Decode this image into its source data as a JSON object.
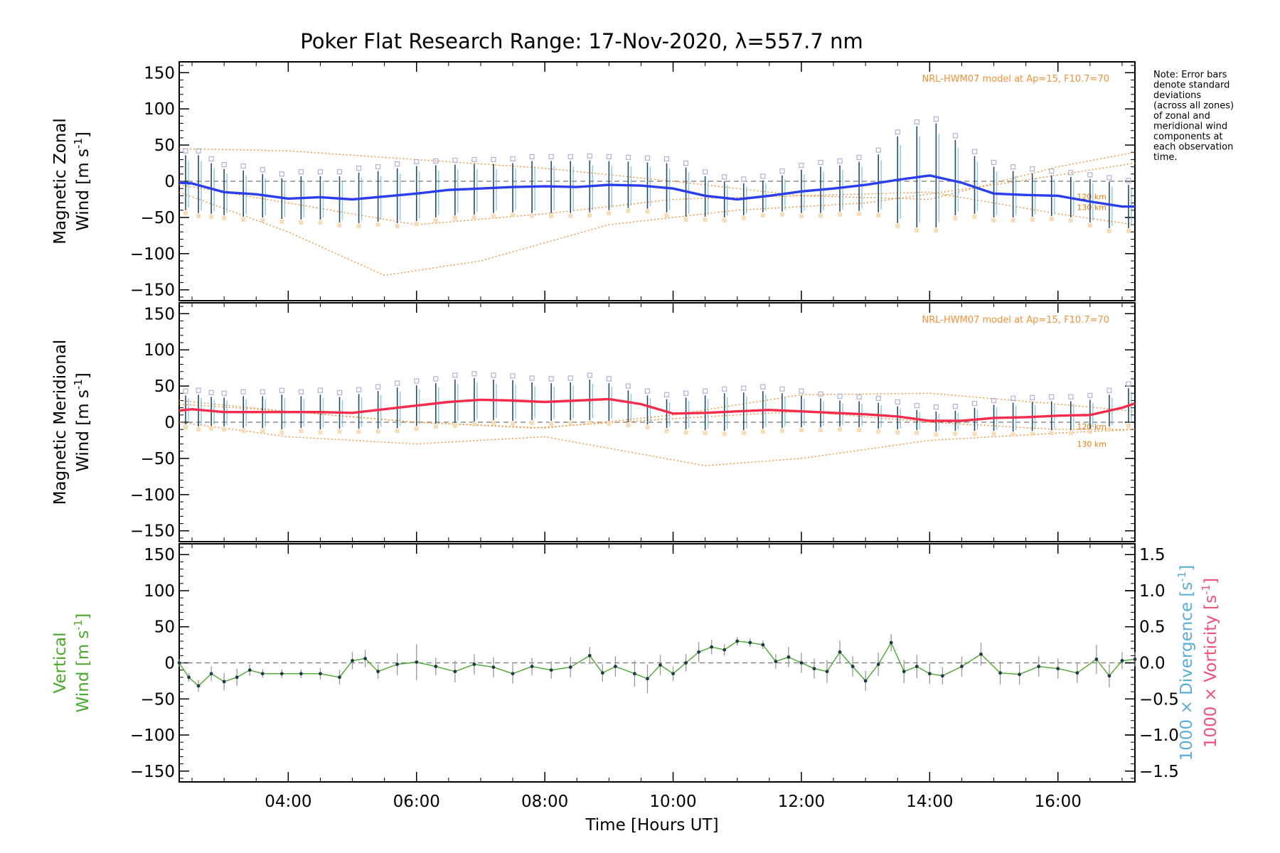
{
  "chart_data": {
    "type": "line",
    "title": "Poker Flat Research Range: 17-Nov-2020, λ=557.7 nm",
    "xlabel": "Time [Hours UT]",
    "xlim_hours": [
      2.3,
      17.2
    ],
    "x_ticks": [
      "04:00",
      "06:00",
      "08:00",
      "10:00",
      "12:00",
      "14:00",
      "16:00"
    ],
    "x_tick_hours": [
      4,
      6,
      8,
      10,
      12,
      14,
      16
    ],
    "grid": false,
    "note": [
      "Note: Error bars",
      "denote standard",
      "deviations",
      "(across all zones)",
      "of zonal and",
      "meridional wind",
      "components at",
      "each observation",
      "time."
    ],
    "colors": {
      "zonal_mean": "#2a3ef0",
      "meridional_mean": "#f52c4c",
      "vertical": "#4aa82c",
      "model": "#f0923a",
      "divergence_label": "#5aaed6",
      "vorticity_label": "#f0507a",
      "scatter": "#b3b0d8",
      "error_bar": "#2a4a6a"
    },
    "panels": [
      {
        "name": "zonal",
        "ylabel_line1": "Magnetic Zonal",
        "ylabel_line2": "Wind [m s",
        "ylabel_sup": "-1",
        "ylabel_end": "]",
        "ylim": [
          -165,
          165
        ],
        "y_ticks": [
          150,
          100,
          50,
          0,
          -50,
          -100,
          -150
        ],
        "model_label": "NRL-HWM07 model at Ap=15, F10.7=70",
        "model_alt_labels": [
          "120 km",
          "130 km"
        ],
        "model_curves": [
          {
            "x": [
              2.3,
              4,
              6,
              8,
              10,
              12,
              14,
              16,
              17.2
            ],
            "y": [
              45,
              42,
              30,
              18,
              0,
              -20,
              -25,
              20,
              40
            ]
          },
          {
            "x": [
              2.3,
              4,
              5.5,
              7,
              9,
              11,
              13,
              15,
              17.2
            ],
            "y": [
              -15,
              -70,
              -130,
              -110,
              -60,
              -40,
              -30,
              -5,
              25
            ]
          },
          {
            "x": [
              2.3,
              4,
              6,
              8,
              10,
              12,
              14,
              16,
              17.2
            ],
            "y": [
              -5,
              -30,
              -60,
              -45,
              -25,
              -20,
              -15,
              -45,
              -60
            ]
          }
        ],
        "mean": {
          "x": [
            2.3,
            2.5,
            3.0,
            3.5,
            4.0,
            4.5,
            5.0,
            5.5,
            6.0,
            6.5,
            7.0,
            7.5,
            8.0,
            8.5,
            9.0,
            9.5,
            10.0,
            10.5,
            11.0,
            11.5,
            12.0,
            12.5,
            13.0,
            13.5,
            14.0,
            14.5,
            15.0,
            15.5,
            16.0,
            16.5,
            17.0,
            17.2
          ],
          "y": [
            -2,
            -3,
            -15,
            -18,
            -24,
            -22,
            -25,
            -21,
            -17,
            -12,
            -10,
            -8,
            -7,
            -8,
            -5,
            -6,
            -10,
            -20,
            -25,
            -20,
            -14,
            -10,
            -5,
            2,
            8,
            -2,
            -17,
            -19,
            -20,
            -28,
            -35,
            -35
          ]
        },
        "errors": {
          "x": [
            2.4,
            2.6,
            2.8,
            3.0,
            3.3,
            3.6,
            3.9,
            4.2,
            4.5,
            4.8,
            5.1,
            5.4,
            5.7,
            6.0,
            6.3,
            6.6,
            6.9,
            7.2,
            7.5,
            7.8,
            8.1,
            8.4,
            8.7,
            9.0,
            9.3,
            9.6,
            9.9,
            10.2,
            10.5,
            10.8,
            11.1,
            11.4,
            11.7,
            12.0,
            12.3,
            12.6,
            12.9,
            13.2,
            13.5,
            13.8,
            14.1,
            14.4,
            14.7,
            15.0,
            15.3,
            15.6,
            15.9,
            16.2,
            16.5,
            16.8,
            17.1
          ],
          "y": [
            -2,
            -4,
            -10,
            -15,
            -17,
            -20,
            -24,
            -23,
            -23,
            -25,
            -23,
            -21,
            -20,
            -17,
            -14,
            -12,
            -11,
            -10,
            -9,
            -8,
            -8,
            -8,
            -7,
            -6,
            -5,
            -6,
            -9,
            -15,
            -21,
            -25,
            -25,
            -21,
            -17,
            -14,
            -12,
            -10,
            -7,
            -3,
            2,
            6,
            8,
            5,
            -5,
            -15,
            -18,
            -19,
            -20,
            -22,
            -27,
            -33,
            -35
          ],
          "err": [
            38,
            40,
            35,
            32,
            32,
            30,
            28,
            30,
            30,
            32,
            35,
            35,
            38,
            38,
            36,
            35,
            35,
            34,
            34,
            36,
            36,
            36,
            36,
            34,
            32,
            32,
            34,
            34,
            28,
            25,
            22,
            22,
            25,
            30,
            32,
            32,
            34,
            40,
            60,
            70,
            72,
            52,
            40,
            35,
            32,
            30,
            28,
            28,
            30,
            32,
            30
          ]
        }
      },
      {
        "name": "meridional",
        "ylabel_line1": "Magnetic Meridional",
        "ylabel_line2": "Wind [m s",
        "ylabel_sup": "-1",
        "ylabel_end": "]",
        "ylim": [
          -165,
          165
        ],
        "y_ticks": [
          150,
          100,
          50,
          0,
          -50,
          -100,
          -150
        ],
        "model_label": "NRL-HWM07 model at Ap=15, F10.7=70",
        "model_alt_labels": [
          "120 km",
          "130 km"
        ],
        "model_curves": [
          {
            "x": [
              2.3,
              4,
              6,
              8,
              10,
              12,
              14,
              16,
              17.2
            ],
            "y": [
              25,
              15,
              0,
              -8,
              10,
              38,
              40,
              25,
              15
            ]
          },
          {
            "x": [
              2.3,
              4,
              6,
              8,
              10.5,
              12,
              14,
              16,
              17.2
            ],
            "y": [
              0,
              -20,
              -30,
              -20,
              -60,
              -50,
              -25,
              -15,
              -10
            ]
          },
          {
            "x": [
              2.3,
              4,
              6,
              7.8,
              10,
              12,
              14,
              16,
              17.2
            ],
            "y": [
              30,
              15,
              0,
              -8,
              5,
              15,
              0,
              -10,
              -10
            ]
          }
        ],
        "mean": {
          "x": [
            2.3,
            2.5,
            3.0,
            3.5,
            4.0,
            4.5,
            5.0,
            5.5,
            6.0,
            6.5,
            7.0,
            7.5,
            8.0,
            8.5,
            9.0,
            9.5,
            10.0,
            10.5,
            11.0,
            11.5,
            12.0,
            12.5,
            13.0,
            13.5,
            14.0,
            14.5,
            15.0,
            15.5,
            16.0,
            16.5,
            17.0,
            17.2
          ],
          "y": [
            16,
            18,
            14,
            14,
            14,
            14,
            13,
            18,
            23,
            28,
            31,
            30,
            28,
            30,
            32,
            25,
            12,
            13,
            15,
            17,
            15,
            13,
            11,
            8,
            2,
            2,
            6,
            7,
            9,
            10,
            20,
            26
          ]
        },
        "errors": {
          "x": [
            2.4,
            2.6,
            2.8,
            3.0,
            3.3,
            3.6,
            3.9,
            4.2,
            4.5,
            4.8,
            5.1,
            5.4,
            5.7,
            6.0,
            6.3,
            6.6,
            6.9,
            7.2,
            7.5,
            7.8,
            8.1,
            8.4,
            8.7,
            9.0,
            9.3,
            9.6,
            9.9,
            10.2,
            10.5,
            10.8,
            11.1,
            11.4,
            11.7,
            12.0,
            12.3,
            12.6,
            12.9,
            13.2,
            13.5,
            13.8,
            14.1,
            14.4,
            14.7,
            15.0,
            15.3,
            15.6,
            15.9,
            16.2,
            16.5,
            16.8,
            17.1
          ],
          "y": [
            17,
            16,
            15,
            14,
            14,
            14,
            14,
            14,
            14,
            13,
            15,
            17,
            20,
            23,
            26,
            29,
            31,
            31,
            30,
            29,
            28,
            29,
            31,
            28,
            22,
            17,
            12,
            12,
            13,
            14,
            15,
            17,
            16,
            15,
            13,
            12,
            11,
            9,
            6,
            3,
            1,
            2,
            4,
            6,
            7,
            8,
            9,
            9,
            11,
            16,
            23
          ],
          "err": [
            20,
            22,
            20,
            20,
            22,
            22,
            24,
            22,
            24,
            22,
            24,
            26,
            28,
            28,
            28,
            30,
            30,
            28,
            28,
            26,
            26,
            26,
            28,
            26,
            22,
            20,
            20,
            22,
            24,
            26,
            26,
            26,
            24,
            22,
            20,
            18,
            18,
            18,
            16,
            14,
            14,
            14,
            16,
            18,
            20,
            20,
            20,
            20,
            20,
            22,
            24
          ]
        }
      },
      {
        "name": "vertical",
        "ylabel_line1": "Vertical",
        "ylabel_line2": "Wind [m s",
        "ylabel_sup": "-1",
        "ylabel_end": "]",
        "ylim": [
          -165,
          165
        ],
        "y_ticks": [
          150,
          100,
          50,
          0,
          -50,
          -100,
          -150
        ],
        "right_axis": {
          "ylim": [
            -1.65,
            1.65
          ],
          "ticks": [
            "1.5",
            "1.0",
            "0.5",
            "0.0",
            "-0.5",
            "-1.0",
            "-1.5"
          ],
          "tick_values": [
            1.5,
            1.0,
            0.5,
            0.0,
            -0.5,
            -1.0,
            -1.5
          ],
          "label_div": "1000 × Divergence [s",
          "label_vor": "1000 × Vorticity [s",
          "label_sup": "-1",
          "label_end": "]"
        },
        "series": {
          "x": [
            2.3,
            2.45,
            2.6,
            2.8,
            3.0,
            3.2,
            3.4,
            3.6,
            3.9,
            4.2,
            4.5,
            4.8,
            5.0,
            5.2,
            5.4,
            5.7,
            6.0,
            6.3,
            6.6,
            6.9,
            7.2,
            7.5,
            7.8,
            8.1,
            8.4,
            8.7,
            8.9,
            9.1,
            9.4,
            9.6,
            9.8,
            10.0,
            10.2,
            10.4,
            10.6,
            10.8,
            11.0,
            11.2,
            11.4,
            11.6,
            11.8,
            12.0,
            12.2,
            12.4,
            12.6,
            12.8,
            13.0,
            13.2,
            13.4,
            13.6,
            13.8,
            14.0,
            14.2,
            14.5,
            14.8,
            15.1,
            15.4,
            15.7,
            16.0,
            16.3,
            16.6,
            16.8,
            17.0,
            17.2
          ],
          "y": [
            0,
            -20,
            -32,
            -15,
            -26,
            -20,
            -10,
            -15,
            -15,
            -15,
            -15,
            -20,
            3,
            6,
            -12,
            -2,
            1,
            -5,
            -12,
            -2,
            -6,
            -15,
            -5,
            -10,
            -6,
            10,
            -14,
            -5,
            -15,
            -22,
            -3,
            -15,
            0,
            15,
            22,
            18,
            30,
            28,
            25,
            2,
            8,
            0,
            -8,
            -12,
            15,
            -5,
            -25,
            -2,
            28,
            -12,
            -5,
            -15,
            -18,
            -5,
            12,
            -14,
            -16,
            -5,
            -8,
            -14,
            5,
            -18,
            3,
            5
          ],
          "err": [
            5,
            6,
            8,
            10,
            12,
            12,
            8,
            6,
            6,
            6,
            8,
            10,
            12,
            12,
            10,
            15,
            25,
            12,
            15,
            14,
            14,
            14,
            12,
            12,
            14,
            12,
            12,
            14,
            18,
            20,
            14,
            10,
            12,
            14,
            10,
            8,
            6,
            6,
            6,
            10,
            14,
            14,
            14,
            16,
            16,
            14,
            14,
            16,
            12,
            16,
            16,
            14,
            12,
            14,
            16,
            16,
            14,
            14,
            14,
            14,
            20,
            16,
            12,
            10
          ]
        }
      }
    ]
  }
}
